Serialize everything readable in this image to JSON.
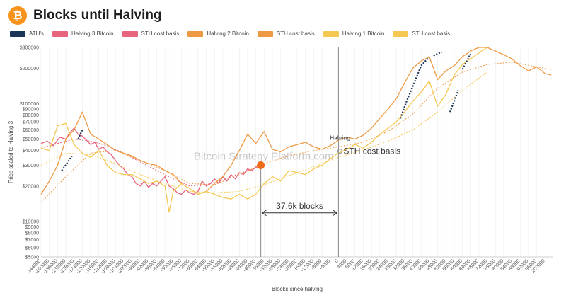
{
  "header": {
    "title": "Blocks until Halving",
    "logo_glyph": "₿",
    "logo_icon": "bitcoin-logo-icon"
  },
  "legend": [
    {
      "label": "ATH's",
      "color": "#1d3557"
    },
    {
      "label": "Halving 3 Bitcoin",
      "color": "#e8637c"
    },
    {
      "label": "STH cost basis",
      "color": "#e8637c"
    },
    {
      "label": "Halving 2 Bitcoin",
      "color": "#ee9a45"
    },
    {
      "label": "STH cost basis",
      "color": "#ee9a45"
    },
    {
      "label": "Halving 1 Bitcoin",
      "color": "#f5c851"
    },
    {
      "label": "STH cost basis",
      "color": "#f5c851"
    }
  ],
  "watermark": "Bitcoin Strategy Platform.com",
  "sth_label": "STH cost basis",
  "chart_data": {
    "type": "line",
    "title": "Blocks until Halving",
    "xlabel": "Blocks since halving",
    "ylabel": "Price scaled to Halving 3",
    "y_scale": "log",
    "xlim": [
      -144000,
      104000
    ],
    "ylim": [
      5000,
      300000
    ],
    "x_ticks": [
      -144000,
      -140000,
      -136000,
      -132000,
      -128000,
      -124000,
      -120000,
      -116000,
      -112000,
      -108000,
      -104000,
      -100000,
      -96000,
      -92000,
      -88000,
      -84000,
      -80000,
      -76000,
      -72000,
      -68000,
      -64000,
      -60000,
      -56000,
      -52000,
      -48000,
      -44000,
      -40000,
      -36000,
      -32000,
      -28000,
      -24000,
      -20000,
      -16000,
      -12000,
      -8000,
      -4000,
      0,
      4000,
      8000,
      12000,
      16000,
      20000,
      24000,
      28000,
      32000,
      36000,
      40000,
      44000,
      48000,
      52000,
      56000,
      60000,
      64000,
      68000,
      72000,
      76000,
      80000,
      84000,
      88000,
      92000,
      96000,
      100000
    ],
    "y_ticks": [
      {
        "value": 300000,
        "label": "$300000"
      },
      {
        "value": 200000,
        "label": "$200000"
      },
      {
        "value": 100000,
        "label": "$100000"
      },
      {
        "value": 90000,
        "label": "$90000"
      },
      {
        "value": 80000,
        "label": "$80000"
      },
      {
        "value": 70000,
        "label": "$70000"
      },
      {
        "value": 60000,
        "label": "$60000"
      },
      {
        "value": 50000,
        "label": "$50000"
      },
      {
        "value": 40000,
        "label": "$40000"
      },
      {
        "value": 30000,
        "label": "$30000"
      },
      {
        "value": 20000,
        "label": "$20000"
      },
      {
        "value": 10000,
        "label": "$10000"
      },
      {
        "value": 9000,
        "label": "$9000"
      },
      {
        "value": 8000,
        "label": "$8000"
      },
      {
        "value": 7000,
        "label": "$7000"
      },
      {
        "value": 6000,
        "label": "$6000"
      },
      {
        "value": 5000,
        "label": "$5000"
      }
    ],
    "series": [
      {
        "name": "Halving 3 Bitcoin",
        "color": "#e8637c",
        "width": 1.3,
        "x": [
          -144000,
          -141000,
          -138000,
          -135000,
          -132000,
          -130000,
          -128000,
          -126000,
          -124000,
          -122000,
          -120000,
          -118000,
          -116000,
          -114000,
          -112000,
          -110000,
          -108000,
          -106000,
          -104000,
          -102000,
          -100000,
          -98000,
          -96000,
          -94000,
          -92000,
          -90000,
          -88000,
          -86000,
          -84000,
          -82000,
          -80000,
          -78000,
          -76000,
          -74000,
          -72000,
          -70000,
          -68000,
          -66000,
          -64000,
          -62000,
          -60000,
          -58000,
          -56000,
          -54000,
          -52000,
          -50000,
          -48000,
          -46000,
          -44000,
          -42000,
          -40000,
          -38000,
          -37600
        ],
        "y": [
          46000,
          48000,
          44000,
          52000,
          50000,
          57000,
          62000,
          55000,
          53000,
          49000,
          45000,
          47000,
          41000,
          43000,
          39000,
          37000,
          33000,
          30000,
          28000,
          25000,
          24000,
          21000,
          20000,
          22000,
          19500,
          21000,
          20000,
          22000,
          24000,
          20000,
          19000,
          17500,
          17000,
          18500,
          17500,
          17000,
          18000,
          22000,
          20000,
          21000,
          23000,
          21000,
          24000,
          22000,
          25000,
          23000,
          26000,
          25000,
          28000,
          27000,
          29000,
          31000,
          30000
        ]
      },
      {
        "name": "STH cost basis",
        "color": "#e8637c",
        "width": 1,
        "dash": "2,2",
        "x": [
          -144000,
          -136000,
          -128000,
          -120000,
          -112000,
          -104000,
          -96000,
          -88000,
          -80000,
          -72000,
          -64000,
          -56000,
          -48000,
          -40000,
          -37600
        ],
        "y": [
          42000,
          46000,
          50000,
          48000,
          44000,
          38000,
          32000,
          27000,
          23000,
          20000,
          20500,
          22500,
          25500,
          28500,
          29500
        ]
      },
      {
        "name": "Halving 2 Bitcoin",
        "color": "#ee9a45",
        "width": 1.3,
        "x": [
          -144000,
          -140000,
          -136000,
          -132000,
          -128000,
          -124000,
          -120000,
          -116000,
          -112000,
          -108000,
          -104000,
          -100000,
          -96000,
          -92000,
          -88000,
          -84000,
          -80000,
          -76000,
          -72000,
          -68000,
          -64000,
          -60000,
          -56000,
          -52000,
          -48000,
          -44000,
          -40000,
          -36000,
          -32000,
          -28000,
          -24000,
          -20000,
          -16000,
          -12000,
          -8000,
          -4000,
          0,
          4000,
          8000,
          12000,
          16000,
          20000,
          24000,
          28000,
          32000,
          36000,
          40000,
          44000,
          48000,
          52000,
          56000,
          60000,
          64000,
          68000,
          72000,
          76000,
          80000,
          84000,
          88000,
          92000,
          96000,
          100000,
          103000
        ],
        "y": [
          17000,
          22000,
          30000,
          50000,
          60000,
          85000,
          55000,
          50000,
          45000,
          40000,
          38000,
          36000,
          33000,
          31000,
          30000,
          27000,
          25000,
          21000,
          19000,
          17000,
          18000,
          21000,
          24000,
          30000,
          40000,
          55000,
          46000,
          58000,
          41000,
          39000,
          43000,
          45000,
          47000,
          43000,
          41000,
          44000,
          49000,
          52000,
          50000,
          54000,
          62000,
          75000,
          90000,
          110000,
          150000,
          200000,
          230000,
          250000,
          160000,
          190000,
          210000,
          250000,
          280000,
          300000,
          300000,
          280000,
          260000,
          240000,
          210000,
          190000,
          205000,
          180000,
          175000
        ]
      },
      {
        "name": "STH cost basis",
        "color": "#ee9a45",
        "width": 1,
        "dash": "2,2",
        "x": [
          -144000,
          -132000,
          -120000,
          -108000,
          -96000,
          -84000,
          -72000,
          -60000,
          -48000,
          -36000,
          -24000,
          -12000,
          0,
          12000,
          24000,
          36000,
          48000,
          60000,
          72000,
          84000,
          96000,
          103000
        ],
        "y": [
          14500,
          24000,
          38000,
          40000,
          33000,
          27000,
          21000,
          20500,
          25000,
          31000,
          36000,
          40000,
          43000,
          47000,
          58000,
          82000,
          135000,
          185000,
          215000,
          225000,
          205000,
          195000
        ]
      },
      {
        "name": "Halving 1 Bitcoin",
        "color": "#f5c851",
        "width": 1.3,
        "x": [
          -144000,
          -140000,
          -136000,
          -132000,
          -128000,
          -124000,
          -120000,
          -116000,
          -112000,
          -108000,
          -104000,
          -100000,
          -96000,
          -92000,
          -88000,
          -84000,
          -82000,
          -80000,
          -76000,
          -72000,
          -68000,
          -64000,
          -60000,
          -56000,
          -52000,
          -48000,
          -44000,
          -40000,
          -36000,
          -32000,
          -28000,
          -24000,
          -20000,
          -16000,
          -12000,
          -8000,
          -4000,
          0,
          4000,
          8000,
          12000,
          16000,
          20000,
          24000,
          28000,
          32000,
          36000,
          40000,
          44000,
          48000,
          52000,
          56000,
          60000,
          64000,
          68000,
          72000
        ],
        "y": [
          42000,
          40000,
          65000,
          68000,
          45000,
          38000,
          35000,
          40000,
          30000,
          26000,
          25000,
          25000,
          23000,
          21000,
          22000,
          20000,
          12000,
          18000,
          21000,
          19000,
          17000,
          18000,
          17000,
          16000,
          15500,
          17000,
          15500,
          17000,
          21000,
          24000,
          22000,
          27000,
          26000,
          25000,
          28000,
          30000,
          34000,
          38000,
          41000,
          45000,
          42000,
          47000,
          55000,
          62000,
          70000,
          85000,
          105000,
          125000,
          155000,
          95000,
          120000,
          175000,
          215000,
          240000,
          270000,
          300000
        ]
      },
      {
        "name": "STH cost basis",
        "color": "#f5c851",
        "width": 1,
        "dash": "2,2",
        "x": [
          -144000,
          -132000,
          -120000,
          -108000,
          -96000,
          -84000,
          -72000,
          -60000,
          -48000,
          -36000,
          -24000,
          -12000,
          0,
          12000,
          24000,
          36000,
          48000,
          60000,
          72000
        ],
        "y": [
          30000,
          38000,
          37000,
          31000,
          25000,
          21000,
          18000,
          17500,
          18000,
          20500,
          24500,
          29000,
          35000,
          40500,
          48000,
          60000,
          85000,
          130000,
          185000
        ]
      }
    ],
    "ath_markers": {
      "color": "#1d3557",
      "segments": [
        {
          "x": [
            -134000,
            -131000,
            -129000
          ],
          "y": [
            27000,
            32000,
            36000
          ]
        },
        {
          "x": [
            -126000,
            -124000
          ],
          "y": [
            50000,
            60000
          ]
        },
        {
          "x": [
            30000,
            33000,
            36000,
            40000,
            44000
          ],
          "y": [
            75000,
            105000,
            140000,
            210000,
            250000
          ]
        },
        {
          "x": [
            46000,
            50000
          ],
          "y": [
            255000,
            275000
          ]
        },
        {
          "x": [
            54000,
            58000
          ],
          "y": [
            85000,
            130000
          ]
        },
        {
          "x": [
            60000,
            64000
          ],
          "y": [
            195000,
            265000
          ]
        }
      ]
    },
    "annotations": {
      "halving_x": 0,
      "halving_label": "Halving",
      "current_x": -37600,
      "current_y": 30000,
      "span_label": "37.6k blocks"
    }
  }
}
